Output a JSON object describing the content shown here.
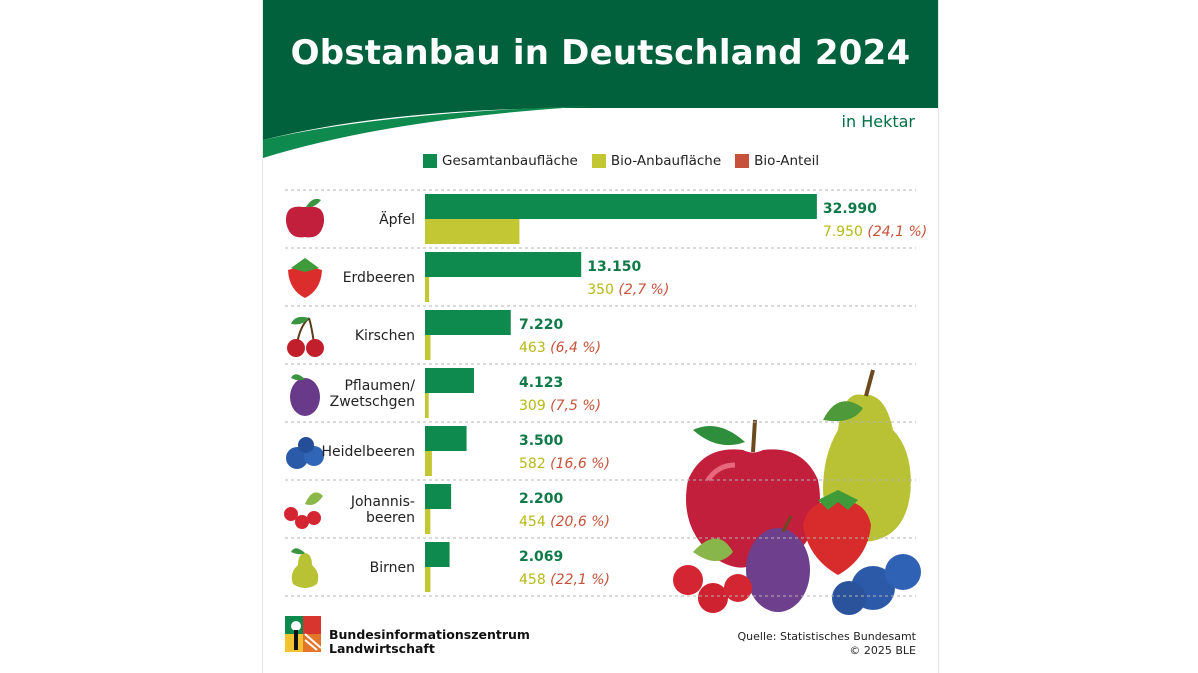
{
  "header": {
    "title": "Obstanbau in Deutschland 2024",
    "unit": "in Hektar",
    "bg_color": "#00613c"
  },
  "legend": [
    {
      "label": "Gesamtanbaufläche",
      "color": "#0f8a4e"
    },
    {
      "label": "Bio-Anbaufläche",
      "color": "#c2c733"
    },
    {
      "label": "Bio-Anteil",
      "color": "#c7523b"
    }
  ],
  "chart_data": {
    "type": "bar",
    "orientation": "horizontal",
    "categories": [
      "Äpfel",
      "Erdbeeren",
      "Kirschen",
      "Pflaumen/\nZwetschgen",
      "Heidelbeeren",
      "Johannis-\nbeeren",
      "Birnen"
    ],
    "icons": [
      "apple-icon",
      "strawberry-icon",
      "cherries-icon",
      "plum-icon",
      "blueberries-icon",
      "redcurrants-icon",
      "pear-icon"
    ],
    "series": [
      {
        "name": "Gesamtanbaufläche",
        "values": [
          32990,
          13150,
          7220,
          4123,
          3500,
          2200,
          2069
        ],
        "labels": [
          "32.990",
          "13.150",
          "7.220",
          "4.123",
          "3.500",
          "2.200",
          "2.069"
        ]
      },
      {
        "name": "Bio-Anbaufläche",
        "values": [
          7950,
          350,
          463,
          309,
          582,
          454,
          458
        ],
        "labels": [
          "7.950",
          "350",
          "463",
          "309",
          "582",
          "454",
          "458"
        ]
      },
      {
        "name": "Bio-Anteil",
        "values": [
          24.1,
          2.7,
          6.4,
          7.5,
          16.6,
          20.6,
          22.1
        ],
        "labels": [
          "(24,1 %)",
          "(2,7 %)",
          "(6,4 %)",
          "(7,5 %)",
          "(16,6 %)",
          "(20,6 %)",
          "(22,1 %)"
        ]
      }
    ],
    "xlim": [
      0,
      33000
    ],
    "grid": "dashed row separators",
    "legend_position": "top"
  },
  "footer": {
    "org_line1": "Bundesinformationszentrum",
    "org_line2": "Landwirtschaft",
    "source": "Quelle: Statistisches Bundesamt",
    "copyright": "© 2025 BLE"
  },
  "watermark": "© BLE",
  "illustration_icon": "fruit-illustration"
}
